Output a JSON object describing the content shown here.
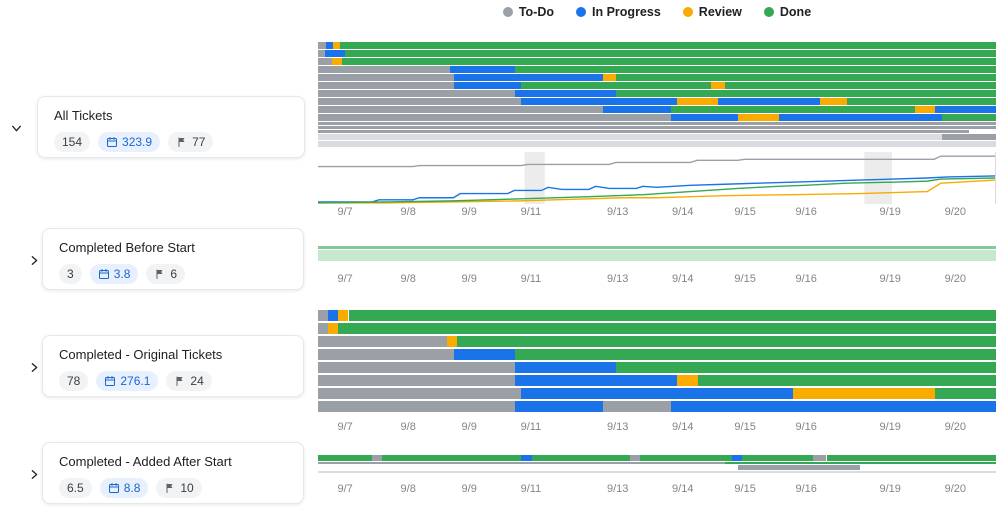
{
  "legend": {
    "items": [
      {
        "label": "To-Do",
        "color": "#9aa0a6"
      },
      {
        "label": "In Progress",
        "color": "#1a73e8"
      },
      {
        "label": "Review",
        "color": "#f9ab00"
      },
      {
        "label": "Done",
        "color": "#34a853"
      }
    ]
  },
  "colors": {
    "todo": "#9aa0a6",
    "in_progress": "#1a73e8",
    "review": "#f9ab00",
    "done": "#34a853",
    "done_med": "#81c995",
    "done_pale": "#c6e8cf",
    "todo_light": "#dadce0",
    "weekend_band": "#ececec",
    "axis_text": "#80868b"
  },
  "groups": [
    {
      "title": "All Tickets",
      "count": "154",
      "days": "323.9",
      "points": "77",
      "expanded": true
    },
    {
      "title": "Completed Before Start",
      "count": "3",
      "days": "3.8",
      "points": "6",
      "expanded": false
    },
    {
      "title": "Completed - Original Tickets",
      "count": "78",
      "days": "276.1",
      "points": "24",
      "expanded": false
    },
    {
      "title": "Completed - Added After Start",
      "count": "6.5",
      "days": "8.8",
      "points": "10",
      "expanded": false
    }
  ],
  "chart_data": {
    "x_ticks": [
      {
        "label": "9/7",
        "pct": 4
      },
      {
        "label": "9/8",
        "pct": 13.3
      },
      {
        "label": "9/9",
        "pct": 22.3
      },
      {
        "label": "9/11",
        "pct": 31.4
      },
      {
        "label": "9/13",
        "pct": 44.2
      },
      {
        "label": "9/14",
        "pct": 53.8
      },
      {
        "label": "9/15",
        "pct": 63
      },
      {
        "label": "9/16",
        "pct": 72
      },
      {
        "label": "9/19",
        "pct": 84.4
      },
      {
        "label": "9/20",
        "pct": 94
      }
    ],
    "charts": [
      {
        "id": "all-tickets-timeline",
        "type": "gantt",
        "rows": [
          {
            "h": 7,
            "segments": [
              [
                "todo",
                0,
                1.2
              ],
              [
                "in_progress",
                1.2,
                2.2
              ],
              [
                "review",
                2.2,
                3.2
              ],
              [
                "done",
                3.2,
                100
              ]
            ]
          },
          {
            "h": 7,
            "segments": [
              [
                "todo",
                0,
                1
              ],
              [
                "in_progress",
                1,
                4
              ],
              [
                "done",
                4,
                100
              ]
            ]
          },
          {
            "h": 7,
            "segments": [
              [
                "todo",
                0,
                2
              ],
              [
                "review",
                2,
                3.5
              ],
              [
                "done",
                3.5,
                100
              ]
            ]
          },
          {
            "h": 7,
            "segments": [
              [
                "todo",
                0,
                19.5
              ],
              [
                "in_progress",
                19.5,
                29
              ],
              [
                "done",
                29,
                100
              ]
            ]
          },
          {
            "h": 7,
            "segments": [
              [
                "todo",
                0,
                20
              ],
              [
                "in_progress",
                20,
                42
              ],
              [
                "review",
                42,
                44
              ],
              [
                "done",
                44,
                100
              ]
            ]
          },
          {
            "h": 7,
            "segments": [
              [
                "todo",
                0,
                20
              ],
              [
                "in_progress",
                20,
                30
              ],
              [
                "done",
                30,
                58
              ],
              [
                "review",
                58,
                60
              ],
              [
                "done",
                60,
                100
              ]
            ]
          },
          {
            "h": 7,
            "segments": [
              [
                "todo",
                0,
                29
              ],
              [
                "in_progress",
                29,
                44
              ],
              [
                "done",
                44,
                100
              ]
            ]
          },
          {
            "h": 7,
            "segments": [
              [
                "todo",
                0,
                30
              ],
              [
                "in_progress",
                30,
                53
              ],
              [
                "review",
                53,
                59
              ],
              [
                "in_progress",
                59,
                74
              ],
              [
                "review",
                74,
                78
              ],
              [
                "done",
                78,
                100
              ]
            ]
          },
          {
            "h": 7,
            "segments": [
              [
                "todo",
                0,
                42
              ],
              [
                "in_progress",
                42,
                52
              ],
              [
                "done",
                52,
                88
              ],
              [
                "review",
                88,
                91
              ],
              [
                "in_progress",
                91,
                100
              ]
            ]
          },
          {
            "h": 7,
            "segments": [
              [
                "todo",
                0,
                52
              ],
              [
                "in_progress",
                52,
                62
              ],
              [
                "review",
                62,
                68
              ],
              [
                "in_progress",
                68,
                92
              ],
              [
                "done",
                92,
                100
              ]
            ]
          },
          {
            "h": 3,
            "segments": [
              [
                "todo",
                0,
                100
              ]
            ]
          },
          {
            "h": 3,
            "segments": [
              [
                "todo",
                0,
                100
              ]
            ]
          },
          {
            "h": 3,
            "segments": [
              [
                "todo",
                0,
                96
              ]
            ]
          },
          {
            "h": 6,
            "segments": [
              [
                "todo_light",
                0,
                92
              ],
              [
                "todo",
                92,
                100
              ]
            ]
          },
          {
            "h": 6,
            "segments": [
              [
                "todo_light",
                0,
                100
              ]
            ]
          }
        ]
      },
      {
        "id": "all-tickets-burnup",
        "type": "line",
        "weekend_bands": [
          [
            30.5,
            33.5
          ],
          [
            80.7,
            84.8
          ]
        ],
        "series": [
          {
            "name": "To-Do",
            "color_key": "todo",
            "points": [
              [
                0,
                72
              ],
              [
                14,
                72
              ],
              [
                15,
                74
              ],
              [
                30,
                74
              ],
              [
                31,
                76
              ],
              [
                43,
                76
              ],
              [
                44,
                80
              ],
              [
                55,
                80
              ],
              [
                56,
                84
              ],
              [
                62,
                84
              ],
              [
                63,
                86
              ],
              [
                91,
                86
              ],
              [
                92,
                92
              ],
              [
                100,
                92
              ]
            ]
          },
          {
            "name": "In Progress",
            "color_key": "in_progress",
            "points": [
              [
                0,
                4
              ],
              [
                8,
                4
              ],
              [
                9,
                8
              ],
              [
                14,
                8
              ],
              [
                15,
                12
              ],
              [
                20,
                12
              ],
              [
                21,
                20
              ],
              [
                28,
                20
              ],
              [
                29,
                26
              ],
              [
                33,
                26
              ],
              [
                34,
                32
              ],
              [
                36,
                28
              ],
              [
                40,
                28
              ],
              [
                41,
                34
              ],
              [
                43,
                30
              ],
              [
                47,
                30
              ],
              [
                48,
                34
              ],
              [
                50,
                32
              ],
              [
                55,
                36
              ],
              [
                60,
                38
              ],
              [
                65,
                40
              ],
              [
                70,
                42
              ],
              [
                80,
                46
              ],
              [
                90,
                50
              ],
              [
                93,
                52
              ],
              [
                100,
                54
              ]
            ]
          },
          {
            "name": "Review",
            "color_key": "review",
            "points": [
              [
                0,
                2
              ],
              [
                10,
                2
              ],
              [
                20,
                4
              ],
              [
                30,
                6
              ],
              [
                35,
                8
              ],
              [
                40,
                10
              ],
              [
                45,
                12
              ],
              [
                50,
                12
              ],
              [
                55,
                14
              ],
              [
                60,
                16
              ],
              [
                70,
                18
              ],
              [
                80,
                20
              ],
              [
                85,
                22
              ],
              [
                90,
                24
              ],
              [
                92,
                40
              ],
              [
                100,
                46
              ]
            ]
          },
          {
            "name": "Done",
            "color_key": "done",
            "points": [
              [
                0,
                2
              ],
              [
                10,
                4
              ],
              [
                20,
                6
              ],
              [
                30,
                10
              ],
              [
                40,
                14
              ],
              [
                48,
                18
              ],
              [
                55,
                24
              ],
              [
                62,
                30
              ],
              [
                68,
                34
              ],
              [
                72,
                36
              ],
              [
                78,
                40
              ],
              [
                85,
                42
              ],
              [
                90,
                44
              ],
              [
                92,
                48
              ],
              [
                100,
                50
              ]
            ]
          }
        ]
      },
      {
        "id": "completed-before-start-timeline",
        "type": "gantt",
        "rows": [
          {
            "h": 3,
            "segments": [
              [
                "done_med",
                0,
                100
              ]
            ]
          },
          {
            "h": 11,
            "segments": [
              [
                "done_pale",
                0,
                100
              ]
            ]
          }
        ]
      },
      {
        "id": "completed-original-timeline",
        "type": "gantt",
        "rows": [
          {
            "h": 11,
            "segments": [
              [
                "todo",
                0,
                1.5
              ],
              [
                "in_progress",
                1.5,
                3
              ],
              [
                "review",
                3,
                4.5
              ],
              [
                "done",
                4.5,
                100
              ]
            ]
          },
          {
            "h": 11,
            "segments": [
              [
                "todo",
                0,
                1.5
              ],
              [
                "review",
                1.5,
                3
              ],
              [
                "done",
                3,
                100
              ]
            ]
          },
          {
            "h": 11,
            "segments": [
              [
                "todo",
                0,
                19
              ],
              [
                "review",
                19,
                20.5
              ],
              [
                "done",
                20.5,
                100
              ]
            ]
          },
          {
            "h": 11,
            "segments": [
              [
                "todo",
                0,
                20
              ],
              [
                "in_progress",
                20,
                29
              ],
              [
                "done",
                29,
                100
              ]
            ]
          },
          {
            "h": 11,
            "segments": [
              [
                "todo",
                0,
                29
              ],
              [
                "in_progress",
                29,
                44
              ],
              [
                "done",
                44,
                100
              ]
            ]
          },
          {
            "h": 11,
            "segments": [
              [
                "todo",
                0,
                29
              ],
              [
                "in_progress",
                29,
                53
              ],
              [
                "review",
                53,
                56
              ],
              [
                "done",
                56,
                100
              ]
            ]
          },
          {
            "h": 11,
            "segments": [
              [
                "todo",
                0,
                30
              ],
              [
                "in_progress",
                30,
                70
              ],
              [
                "review",
                70,
                91
              ],
              [
                "done",
                91,
                100
              ]
            ]
          },
          {
            "h": 11,
            "segments": [
              [
                "todo",
                0,
                29
              ],
              [
                "in_progress",
                29,
                42
              ],
              [
                "todo",
                42,
                52
              ],
              [
                "in_progress",
                52,
                100
              ]
            ]
          }
        ]
      },
      {
        "id": "completed-added-timeline",
        "type": "gantt",
        "rows": [
          {
            "h": 6,
            "segments": [
              [
                "done",
                0,
                8
              ],
              [
                "todo",
                8,
                9.5
              ],
              [
                "done",
                9.5,
                30
              ],
              [
                "in_progress",
                30,
                31.5
              ],
              [
                "done",
                31.5,
                46
              ],
              [
                "todo",
                46,
                47.5
              ],
              [
                "done",
                47.5,
                61
              ],
              [
                "in_progress",
                61,
                62.5
              ],
              [
                "done",
                62.5,
                73
              ],
              [
                "todo",
                73,
                75
              ],
              [
                "done",
                75,
                100
              ]
            ]
          },
          {
            "h": 2,
            "segments": [
              [
                "todo",
                0,
                60
              ],
              [
                "done",
                60,
                100
              ]
            ]
          },
          {
            "h": 5,
            "segments": [
              [
                "empty",
                0,
                62
              ],
              [
                "todo",
                62,
                80
              ]
            ]
          },
          {
            "h": 2,
            "segments": [
              [
                "todo_light",
                0,
                100
              ]
            ]
          }
        ]
      }
    ]
  }
}
